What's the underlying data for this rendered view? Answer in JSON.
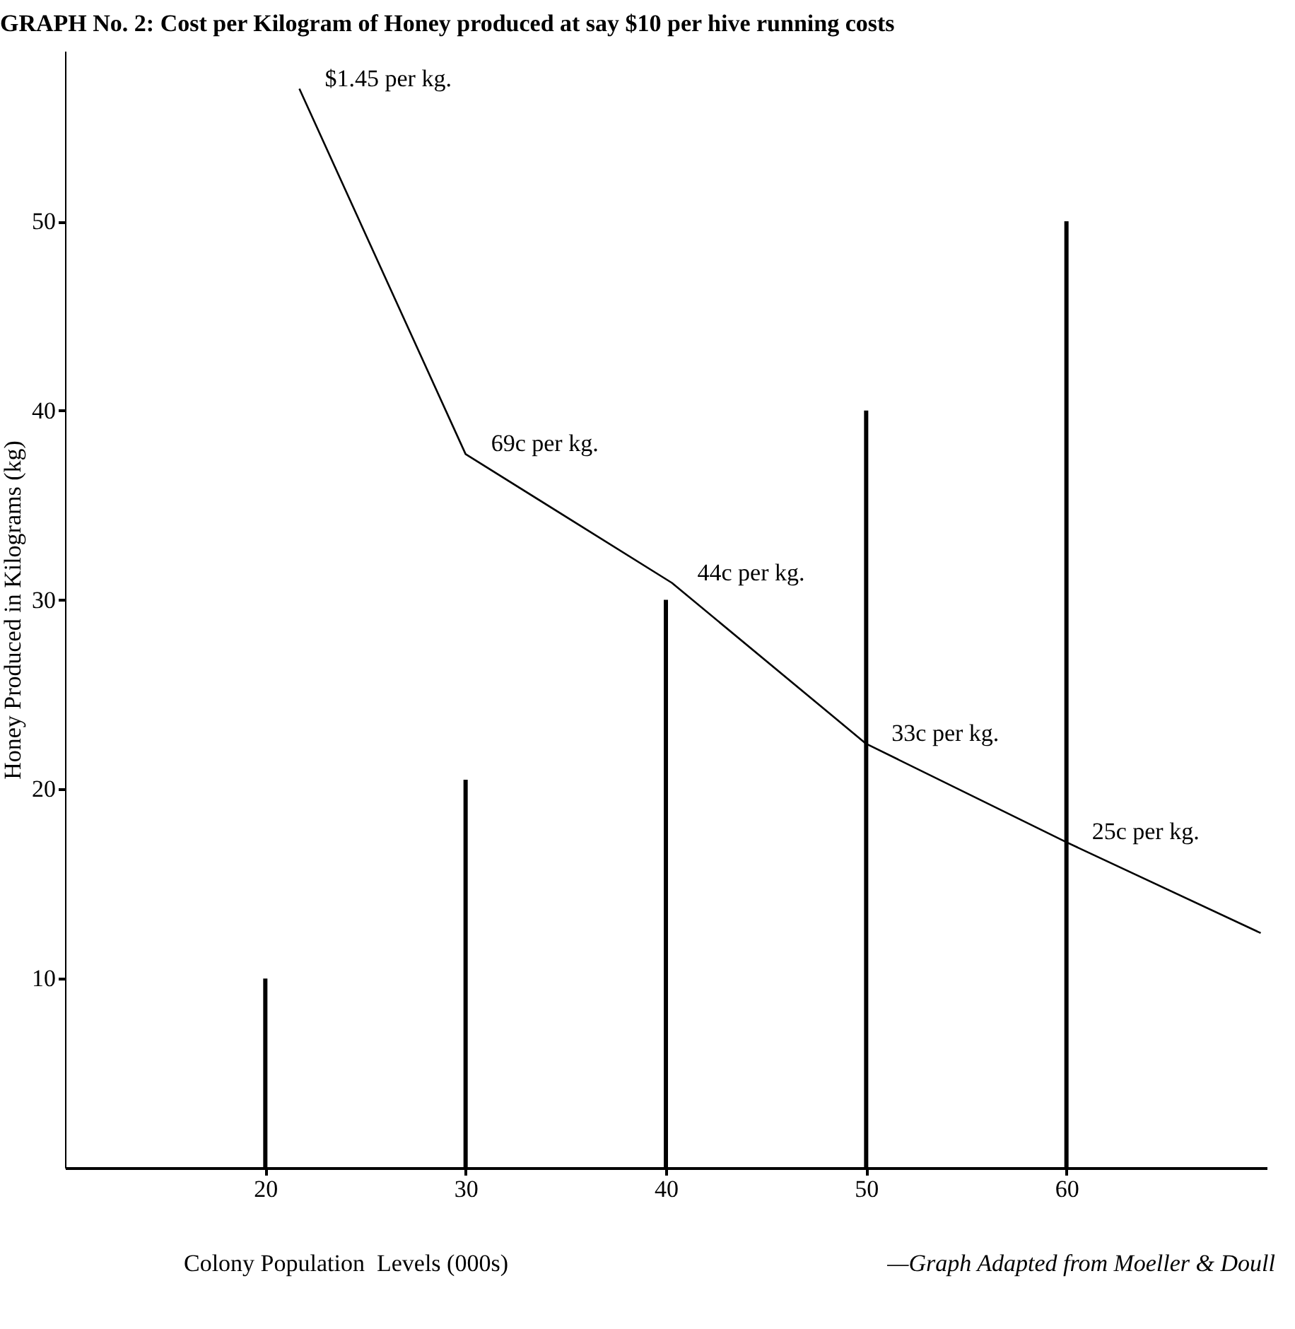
{
  "chart_data": {
    "type": "bar",
    "title": "GRAPH No. 2: Cost per Kilogram of Honey produced at say $10 per hive running costs",
    "xlabel": "Colony Population  Levels (000s)",
    "ylabel": "Honey Produced in Kilograms (kg)",
    "xlim": [
      10,
      70
    ],
    "xticks": [
      20,
      30,
      40,
      50,
      60
    ],
    "ylim": [
      0,
      59
    ],
    "yticks": [
      10,
      20,
      30,
      40,
      50
    ],
    "marker": "none",
    "line_style": "solid",
    "series": [
      {
        "color": "#000000",
        "x": [
          20,
          30,
          40,
          50,
          60
        ],
        "values": [
          10,
          20.5,
          30,
          40,
          50
        ]
      },
      {
        "type": "line",
        "color": "#000000",
        "x": [
          21.7,
          30,
          40.3,
          50,
          60,
          69.7
        ],
        "values": [
          57,
          37.7,
          30.9,
          22.4,
          17.2,
          12.4
        ]
      }
    ],
    "annotations": [
      {
        "text": "$1.45 per kg.",
        "x": 21.7,
        "y": 57
      },
      {
        "text": "69c per kg.",
        "x": 30,
        "y": 37.7
      },
      {
        "text": "44c per kg.",
        "x": 40.3,
        "y": 30.9
      },
      {
        "text": "33c per kg.",
        "x": 50,
        "y": 22.4
      },
      {
        "text": "25c per kg.",
        "x": 60,
        "y": 17.2
      },
      "—Graph Adapted from Moeller & Doull"
    ]
  }
}
